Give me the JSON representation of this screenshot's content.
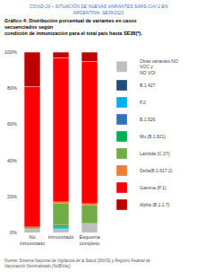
{
  "chart_data": {
    "type": "bar",
    "stacked": true,
    "title": "Gráfico 4: Distribución porcentual de variantes en casos secuenciados según\ncondición de inmunización para el total país hasta SE38(*).",
    "annotations": [
      "COVID-19 – SITUACIÓN DE NUEVAS VARIANTES SARS-CoV-2 EN ARGENTINA- SE39/2021",
      "Fuente: Sistema Nacional de Vigilancia de la Salud (SNVS) y Registro Federal de Vacunación Nominalizado (NoBiVac)."
    ],
    "categories": [
      "No inmunizado",
      "Inmunizado",
      "Esquema completo"
    ],
    "series": [
      {
        "name": "Otras variantes NO VOC y\nNO VOI",
        "color": "#bfbfbf",
        "values": [
          2,
          2,
          5
        ]
      },
      {
        "name": "B.1.427",
        "color": "#1f4e79",
        "values": [
          0,
          0,
          0
        ]
      },
      {
        "name": "P.2",
        "color": "#00b0f0",
        "values": [
          0,
          1,
          0
        ]
      },
      {
        "name": "B.1.526",
        "color": "#2e75b6",
        "values": [
          0,
          0,
          0
        ]
      },
      {
        "name": "Mu (B.1.621)",
        "color": "#00b050",
        "values": [
          0,
          1,
          0
        ]
      },
      {
        "name": "Lambda (C.37)",
        "color": "#70ad47",
        "values": [
          1,
          12,
          10
        ]
      },
      {
        "name": "Delta(B.1.617.2)",
        "color": "#ed7d31",
        "values": [
          0,
          1,
          1
        ]
      },
      {
        "name": "Gamma (P.1)",
        "color": "#ff0000",
        "values": [
          78,
          80,
          79
        ]
      },
      {
        "name": "Alpha (B.1.1.7)",
        "color": "#c00000",
        "values": [
          19,
          3,
          5
        ]
      }
    ],
    "ylim": [
      0,
      100
    ],
    "yticks": [
      {
        "value": 0,
        "label": "0%"
      },
      {
        "value": 20,
        "label": "20%"
      },
      {
        "value": 40,
        "label": "40%"
      },
      {
        "value": 60,
        "label": "60%"
      },
      {
        "value": 80,
        "label": "80%"
      },
      {
        "value": 100,
        "label": "100%"
      }
    ],
    "grid": false,
    "legend": "right"
  }
}
